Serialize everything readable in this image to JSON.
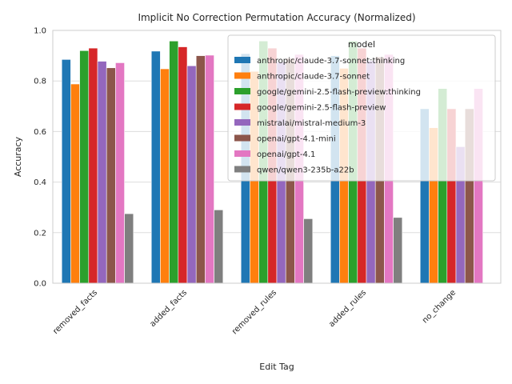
{
  "chart_data": {
    "type": "bar",
    "title": "Implicit No Correction Permutation Accuracy (Normalized)",
    "xlabel": "Edit Tag",
    "ylabel": "Accuracy",
    "ylim": [
      0,
      1.0
    ],
    "yticks": [
      "0.0",
      "0.2",
      "0.4",
      "0.6",
      "0.8",
      "1.0"
    ],
    "grid": true,
    "legend": {
      "title": "model",
      "placement": "top-right"
    },
    "categories": [
      "removed_facts",
      "added_facts",
      "removed_rules",
      "added_rules",
      "no_change"
    ],
    "series": [
      {
        "name": "anthropic/claude-3.7-sonnet:thinking",
        "color": "#1f77b4",
        "values": [
          0.885,
          0.918,
          0.908,
          0.9,
          0.69
        ]
      },
      {
        "name": "anthropic/claude-3.7-sonnet",
        "color": "#ff7f0e",
        "values": [
          0.788,
          0.848,
          0.838,
          0.85,
          0.615
        ]
      },
      {
        "name": "google/gemini-2.5-flash-preview:thinking",
        "color": "#2ca02c",
        "values": [
          0.92,
          0.958,
          0.958,
          0.958,
          0.77
        ]
      },
      {
        "name": "google/gemini-2.5-flash-preview",
        "color": "#d62728",
        "values": [
          0.93,
          0.935,
          0.93,
          0.93,
          0.69
        ]
      },
      {
        "name": "mistralai/mistral-medium-3",
        "color": "#9467bd",
        "values": [
          0.878,
          0.86,
          0.875,
          0.88,
          0.54
        ]
      },
      {
        "name": "openai/gpt-4.1-mini",
        "color": "#8c564b",
        "values": [
          0.852,
          0.9,
          0.89,
          0.895,
          0.69
        ]
      },
      {
        "name": "openai/gpt-4.1",
        "color": "#e377c2",
        "values": [
          0.872,
          0.902,
          0.905,
          0.905,
          0.77
        ]
      },
      {
        "name": "qwen/qwen3-235b-a22b",
        "color": "#7f7f7f",
        "values": [
          0.275,
          0.29,
          0.255,
          0.26,
          0.0
        ]
      }
    ]
  }
}
